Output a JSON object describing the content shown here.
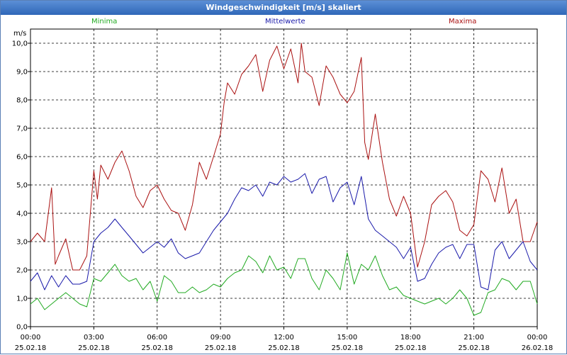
{
  "window": {
    "title": "Windgeschwindigkeit [m/s] skaliert"
  },
  "legend": {
    "min": {
      "label": "Minima",
      "color": "#22aa22"
    },
    "mean": {
      "label": "Mittelwerte",
      "color": "#1a1aaa"
    },
    "max": {
      "label": "Maxima",
      "color": "#aa1111"
    }
  },
  "chart_data": {
    "type": "line",
    "title": "Windgeschwindigkeit [m/s] skaliert",
    "ylabel": "m/s",
    "xlabel": "",
    "ylim": [
      0,
      10.5
    ],
    "grid": true,
    "y_ticks": [
      "0,0",
      "1,0",
      "2,0",
      "3,0",
      "4,0",
      "5,0",
      "6,0",
      "7,0",
      "8,0",
      "9,0",
      "10,0"
    ],
    "x_ticks": [
      {
        "time": "00:00",
        "date": "25.02.18"
      },
      {
        "time": "03:00",
        "date": "25.02.18"
      },
      {
        "time": "06:00",
        "date": "25.02.18"
      },
      {
        "time": "09:00",
        "date": "25.02.18"
      },
      {
        "time": "12:00",
        "date": "25.02.18"
      },
      {
        "time": "15:00",
        "date": "25.02.18"
      },
      {
        "time": "18:00",
        "date": "25.02.18"
      },
      {
        "time": "21:00",
        "date": "25.02.18"
      },
      {
        "time": "00:00",
        "date": "26.02.18"
      }
    ],
    "x_unit": "hours",
    "xlim": [
      0,
      24
    ],
    "series": [
      {
        "name": "Maxima",
        "color": "#aa1111",
        "x": [
          0,
          0.33,
          0.67,
          1,
          1.17,
          1.33,
          1.67,
          2,
          2.33,
          2.67,
          3,
          3.17,
          3.33,
          3.67,
          4,
          4.33,
          4.67,
          5,
          5.33,
          5.67,
          6,
          6.33,
          6.67,
          7,
          7.33,
          7.67,
          8,
          8.33,
          8.67,
          9,
          9.17,
          9.33,
          9.67,
          10,
          10.33,
          10.67,
          11,
          11.33,
          11.67,
          12,
          12.33,
          12.67,
          12.83,
          13,
          13.33,
          13.67,
          14,
          14.33,
          14.67,
          15,
          15.33,
          15.67,
          15.83,
          16,
          16.33,
          16.67,
          17,
          17.33,
          17.67,
          18,
          18.33,
          18.67,
          19,
          19.33,
          19.67,
          20,
          20.33,
          20.67,
          21,
          21.33,
          21.67,
          22,
          22.33,
          22.67,
          23,
          23.33,
          23.67,
          24
        ],
        "values": [
          3.0,
          3.3,
          3.0,
          4.9,
          2.2,
          2.5,
          3.1,
          2.0,
          2.0,
          2.5,
          5.5,
          4.5,
          5.7,
          5.2,
          5.8,
          6.2,
          5.5,
          4.6,
          4.2,
          4.8,
          5.0,
          4.5,
          4.1,
          4.0,
          3.4,
          4.3,
          5.8,
          5.2,
          6.0,
          6.8,
          7.9,
          8.6,
          8.2,
          8.9,
          9.2,
          9.6,
          8.3,
          9.4,
          9.9,
          9.1,
          9.8,
          8.6,
          10.0,
          9.0,
          8.8,
          7.8,
          9.2,
          8.8,
          8.2,
          7.9,
          8.3,
          9.5,
          6.5,
          5.9,
          7.5,
          5.8,
          4.5,
          3.9,
          4.6,
          4.0,
          2.1,
          3.0,
          4.3,
          4.6,
          4.8,
          4.4,
          3.4,
          3.2,
          3.6,
          5.5,
          5.2,
          4.4,
          5.6,
          4.0,
          4.5,
          3.0,
          3.0,
          3.7
        ]
      },
      {
        "name": "Mittelwerte",
        "color": "#1a1aaa",
        "x": [
          0,
          0.33,
          0.67,
          1,
          1.33,
          1.67,
          2,
          2.33,
          2.67,
          3,
          3.33,
          3.67,
          4,
          4.33,
          4.67,
          5,
          5.33,
          5.67,
          6,
          6.33,
          6.67,
          7,
          7.33,
          7.67,
          8,
          8.33,
          8.67,
          9,
          9.33,
          9.67,
          10,
          10.33,
          10.67,
          11,
          11.33,
          11.67,
          12,
          12.33,
          12.67,
          13,
          13.33,
          13.67,
          14,
          14.33,
          14.67,
          15,
          15.33,
          15.67,
          16,
          16.33,
          16.67,
          17,
          17.33,
          17.67,
          18,
          18.33,
          18.67,
          19,
          19.33,
          19.67,
          20,
          20.33,
          20.67,
          21,
          21.33,
          21.67,
          22,
          22.33,
          22.67,
          23,
          23.33,
          23.67,
          24
        ],
        "values": [
          1.6,
          1.9,
          1.3,
          1.8,
          1.4,
          1.8,
          1.5,
          1.5,
          1.6,
          3.0,
          3.3,
          3.5,
          3.8,
          3.5,
          3.2,
          2.9,
          2.6,
          2.8,
          3.0,
          2.8,
          3.1,
          2.6,
          2.4,
          2.5,
          2.6,
          3.0,
          3.4,
          3.7,
          4.0,
          4.5,
          4.9,
          4.8,
          5.0,
          4.6,
          5.1,
          5.0,
          5.3,
          5.1,
          5.2,
          5.4,
          4.7,
          5.2,
          5.3,
          4.4,
          4.9,
          5.1,
          4.3,
          5.3,
          3.8,
          3.4,
          3.2,
          3.0,
          2.8,
          2.4,
          2.8,
          1.6,
          1.7,
          2.2,
          2.6,
          2.8,
          2.9,
          2.4,
          2.9,
          2.9,
          1.4,
          1.3,
          2.7,
          3.0,
          2.4,
          2.7,
          3.0,
          2.3,
          2.0
        ]
      },
      {
        "name": "Minima",
        "color": "#22aa22",
        "x": [
          0,
          0.33,
          0.67,
          1,
          1.33,
          1.67,
          2,
          2.33,
          2.67,
          3,
          3.33,
          3.67,
          4,
          4.33,
          4.67,
          5,
          5.33,
          5.67,
          6,
          6.33,
          6.67,
          7,
          7.33,
          7.67,
          8,
          8.33,
          8.67,
          9,
          9.33,
          9.67,
          10,
          10.33,
          10.67,
          11,
          11.33,
          11.67,
          12,
          12.33,
          12.67,
          13,
          13.33,
          13.67,
          14,
          14.33,
          14.67,
          15,
          15.33,
          15.67,
          16,
          16.33,
          16.67,
          17,
          17.33,
          17.67,
          18,
          18.33,
          18.67,
          19,
          19.33,
          19.67,
          20,
          20.33,
          20.67,
          21,
          21.33,
          21.67,
          22,
          22.33,
          22.67,
          23,
          23.33,
          23.67,
          24
        ],
        "values": [
          0.8,
          1.0,
          0.6,
          0.8,
          1.0,
          1.2,
          1.0,
          0.8,
          0.7,
          1.7,
          1.6,
          1.9,
          2.2,
          1.8,
          1.6,
          1.7,
          1.3,
          1.6,
          0.9,
          1.8,
          1.6,
          1.2,
          1.2,
          1.4,
          1.2,
          1.3,
          1.5,
          1.4,
          1.7,
          1.9,
          2.0,
          2.5,
          2.3,
          1.9,
          2.5,
          2.0,
          2.1,
          1.7,
          2.4,
          2.4,
          1.7,
          1.3,
          2.0,
          1.7,
          1.3,
          2.6,
          1.5,
          2.2,
          2.0,
          2.5,
          1.8,
          1.3,
          1.4,
          1.1,
          1.0,
          0.9,
          0.8,
          0.9,
          1.0,
          0.8,
          1.0,
          1.3,
          1.0,
          0.4,
          0.5,
          1.2,
          1.3,
          1.7,
          1.6,
          1.3,
          1.6,
          1.6,
          0.8
        ]
      }
    ]
  }
}
